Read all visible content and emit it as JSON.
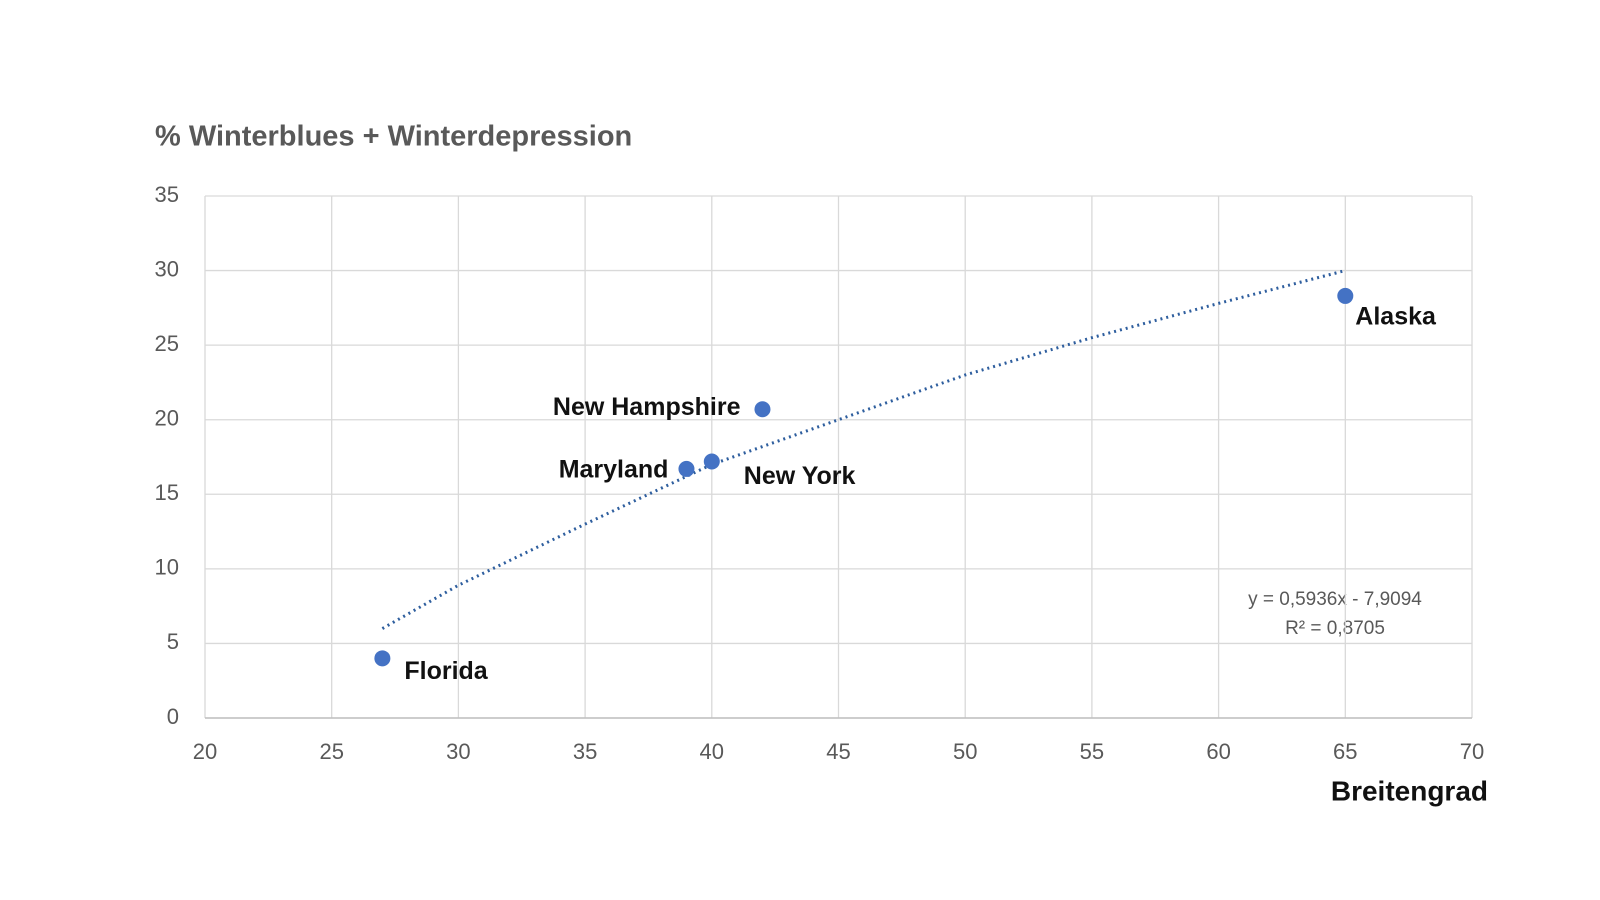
{
  "chart_data": {
    "type": "scatter",
    "title": "% Winterblues + Winterdepression",
    "x_label": "Breitengrad",
    "points": {
      "x": [
        27,
        39,
        40,
        42,
        65
      ],
      "y": [
        4,
        16.7,
        17.2,
        20.7,
        28.3
      ],
      "labels": [
        "Florida",
        "Maryland",
        "New York",
        "New Hampshire",
        "Alaska"
      ],
      "color": "#4472c4"
    },
    "trendline": {
      "x": [
        27,
        30,
        35,
        40,
        45,
        50,
        55,
        60,
        65
      ],
      "y": [
        6,
        8.9,
        13,
        17,
        20,
        23,
        25.5,
        27.8,
        30
      ],
      "color": "#2e5e9e",
      "equation": "y = 0,5936x - 7,9094",
      "r_squared": "R² = 0,8705"
    },
    "xlim": [
      20,
      70
    ],
    "xticks": [
      20,
      25,
      30,
      35,
      40,
      45,
      50,
      55,
      60,
      65,
      70
    ],
    "ylim": [
      0,
      35
    ],
    "yticks": [
      0,
      5,
      10,
      15,
      20,
      25,
      30,
      35
    ],
    "grid": true
  }
}
